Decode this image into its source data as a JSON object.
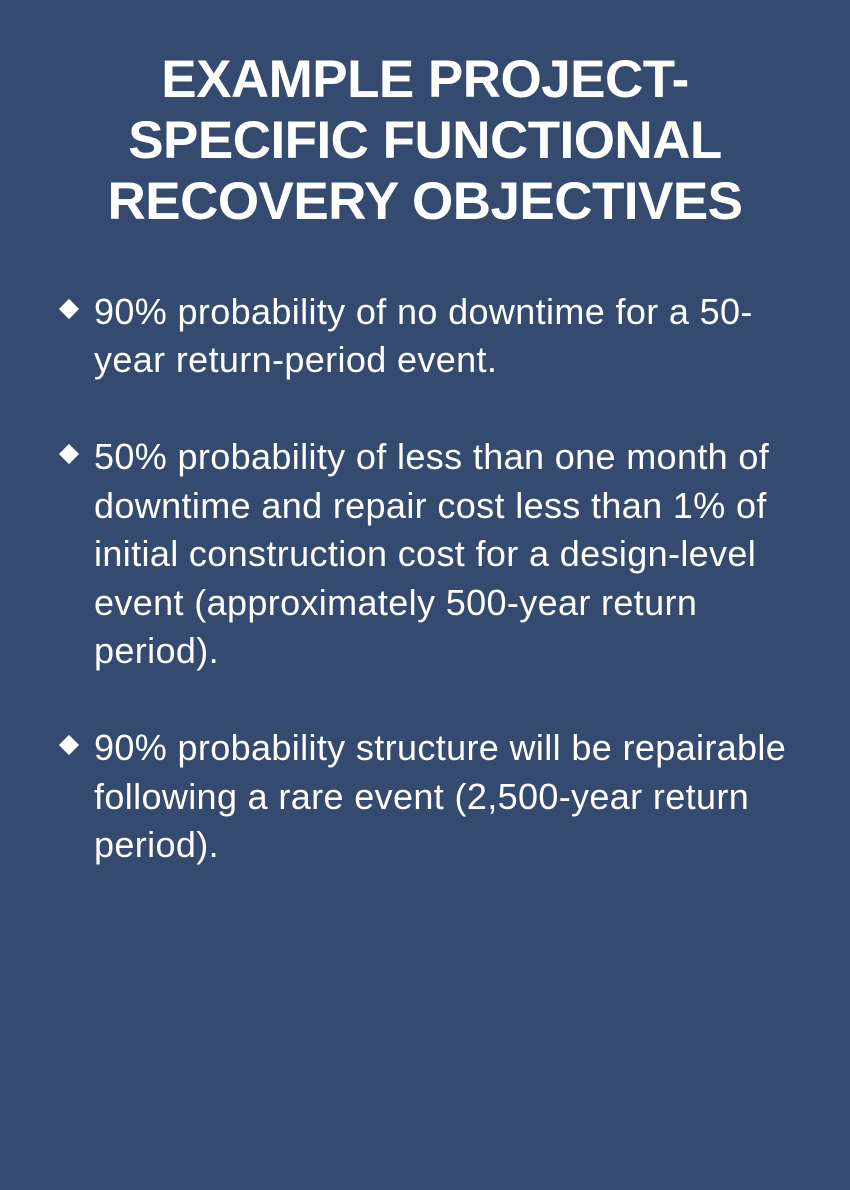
{
  "panel": {
    "background_color": "#354a6f",
    "text_color": "#ffffff",
    "title": "EXAMPLE PROJECT-SPECIFIC FUNCTIONAL RECOVERY OBJECTIVES",
    "title_fontsize": 53,
    "body_fontsize": 36,
    "bullet_glyph_size": 22,
    "bullets": [
      "90% probability of no downtime for a 50-year return-period event.",
      "50% probability of less than one month of downtime and repair cost less than 1% of initial construction cost for a design-level event (approximately 500-year return period).",
      "90% probability structure will be repairable following a rare event (2,500-year return period)."
    ]
  }
}
